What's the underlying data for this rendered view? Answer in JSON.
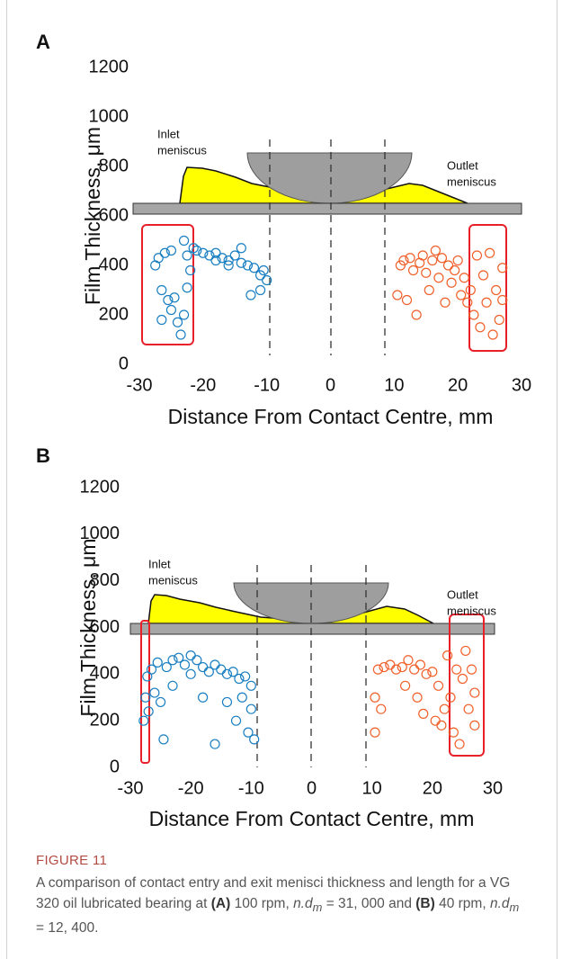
{
  "figure": {
    "label": "FIGURE 11",
    "caption": [
      "A comparison of contact entry and exit menisci thickness and length for a VG 320 oil lubricated bearing at ",
      "(A)",
      " 100 rpm, ",
      "n.d",
      "m",
      " = 31, 000 and ",
      "(B)",
      " 40 rpm, ",
      "n.d",
      "m",
      " = 12, 400."
    ]
  },
  "chart_data": [
    {
      "type": "scatter",
      "label": "A",
      "xlabel": "Distance From Contact Centre, mm",
      "ylabel": "Film Thickness, μm",
      "annotations": [
        [
          "Inlet",
          "meniscus"
        ],
        [
          "Outlet",
          "meniscus"
        ]
      ],
      "xlim": [
        -30,
        30
      ],
      "ylim": [
        0,
        1200
      ],
      "xticks": [
        -30,
        -20,
        -10,
        0,
        10,
        20,
        30
      ],
      "yticks": [
        0,
        200,
        400,
        600,
        800,
        1000,
        1200
      ],
      "series": [
        {
          "color": "#1a7fc1",
          "x": [
            -27.5,
            -27,
            -26.5,
            -26.5,
            -26,
            -25.5,
            -25,
            -25,
            -24.5,
            -24,
            -23.5,
            -23,
            -23,
            -22.5,
            -22.5,
            -22,
            -21.5,
            -21,
            -20,
            -19,
            -18,
            -17,
            -16,
            -15,
            -14,
            -13,
            -12.5,
            -12,
            -11,
            -11,
            -10.5,
            -10,
            -14,
            -16,
            -18
          ],
          "values": [
            400,
            430,
            180,
            300,
            450,
            260,
            220,
            460,
            270,
            170,
            120,
            500,
            200,
            310,
            440,
            380,
            470,
            460,
            450,
            440,
            450,
            430,
            420,
            440,
            410,
            400,
            280,
            390,
            360,
            300,
            380,
            340,
            470,
            400,
            420
          ]
        },
        {
          "color": "#f0602a",
          "x": [
            10.5,
            11,
            11.5,
            12,
            12.5,
            13,
            13.5,
            14,
            14.5,
            15,
            15.5,
            16,
            16.5,
            17,
            17.5,
            18,
            18.5,
            19,
            19.5,
            20,
            20.5,
            21,
            21.5,
            22,
            22.5,
            23,
            23.5,
            24,
            24.5,
            25,
            25.5,
            26,
            26.5,
            27,
            27
          ],
          "values": [
            280,
            400,
            420,
            260,
            430,
            380,
            200,
            410,
            440,
            370,
            300,
            420,
            460,
            350,
            430,
            250,
            400,
            330,
            380,
            420,
            280,
            350,
            250,
            300,
            200,
            440,
            150,
            360,
            250,
            450,
            120,
            300,
            180,
            260,
            390
          ]
        }
      ]
    },
    {
      "type": "scatter",
      "label": "B",
      "xlabel": "Distance From Contact Centre, mm",
      "ylabel": "Film Thickness, μm",
      "annotations": [
        [
          "Inlet",
          "meniscus"
        ],
        [
          "Outlet",
          "meniscus"
        ]
      ],
      "xlim": [
        -30,
        30
      ],
      "ylim": [
        0,
        1200
      ],
      "xticks": [
        -30,
        -20,
        -10,
        0,
        10,
        20,
        30
      ],
      "yticks": [
        0,
        200,
        400,
        600,
        800,
        1000,
        1200
      ],
      "series": [
        {
          "color": "#1a7fc1",
          "x": [
            -27.8,
            -27.5,
            -27.2,
            -27,
            -26.5,
            -26,
            -25.5,
            -25,
            -24.5,
            -24,
            -23,
            -22,
            -21,
            -20,
            -19,
            -18,
            -17,
            -16,
            -16,
            -15,
            -14,
            -14,
            -13,
            -12.5,
            -12,
            -11.5,
            -11,
            -10.5,
            -10,
            -10,
            -9.5,
            -20,
            -23,
            -18
          ],
          "values": [
            200,
            300,
            390,
            240,
            420,
            320,
            450,
            280,
            120,
            430,
            460,
            470,
            440,
            480,
            460,
            430,
            410,
            440,
            100,
            420,
            400,
            280,
            410,
            200,
            380,
            300,
            390,
            150,
            350,
            250,
            120,
            400,
            350,
            300
          ]
        },
        {
          "color": "#f0602a",
          "x": [
            10.5,
            10.5,
            11,
            11.5,
            12,
            13,
            14,
            15,
            15.5,
            16,
            17,
            17.5,
            18,
            18.5,
            19,
            20,
            20.5,
            21,
            21.5,
            22,
            22.5,
            23,
            23.5,
            24,
            24.5,
            25,
            25.5,
            26,
            26.5,
            27,
            27
          ],
          "values": [
            150,
            300,
            420,
            250,
            430,
            440,
            420,
            430,
            350,
            460,
            420,
            300,
            440,
            230,
            400,
            410,
            200,
            350,
            180,
            250,
            480,
            300,
            150,
            420,
            100,
            380,
            500,
            250,
            420,
            180,
            320
          ]
        }
      ]
    }
  ]
}
